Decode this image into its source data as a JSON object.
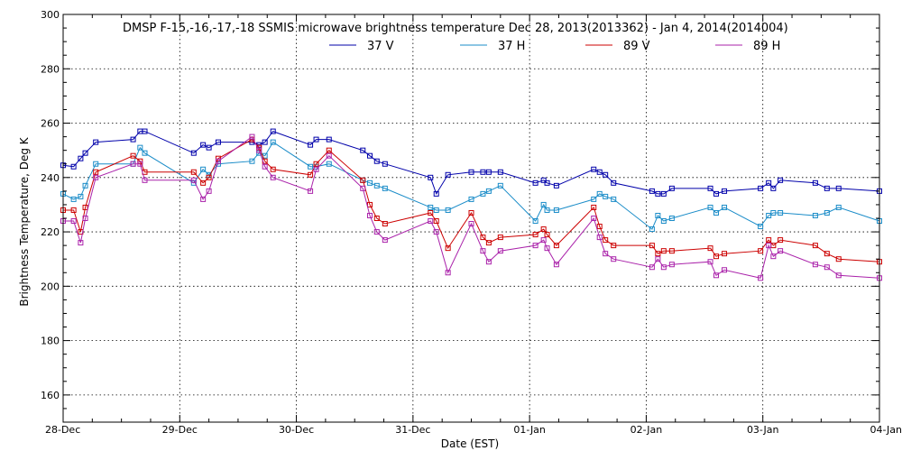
{
  "chart_data": {
    "type": "line",
    "title": "DMSP F-15,-16,-17,-18 SSMIS microwave brightness temperature Dec 28, 2013(2013362) - Jan  4, 2014(2014004)",
    "xlabel": "Date (EST)",
    "ylabel": "Brightness Temperature, Deg K",
    "xlim": [
      0,
      7
    ],
    "ylim": [
      150,
      300
    ],
    "x_ticks": [
      {
        "value": 0,
        "label": "28-Dec"
      },
      {
        "value": 1,
        "label": "29-Dec"
      },
      {
        "value": 2,
        "label": "30-Dec"
      },
      {
        "value": 3,
        "label": "31-Dec"
      },
      {
        "value": 4,
        "label": "01-Jan"
      },
      {
        "value": 5,
        "label": "02-Jan"
      },
      {
        "value": 6,
        "label": "03-Jan"
      },
      {
        "value": 7,
        "label": "04-Jan"
      }
    ],
    "y_ticks": [
      160,
      180,
      200,
      220,
      240,
      260,
      280,
      300
    ],
    "grid": true,
    "legend": "top",
    "series": [
      {
        "name": "37 V",
        "color": "#0000aa",
        "points": [
          [
            0.0,
            244.5
          ],
          [
            0.09,
            244
          ],
          [
            0.15,
            247
          ],
          [
            0.19,
            249
          ],
          [
            0.28,
            253
          ],
          [
            0.6,
            254
          ],
          [
            0.66,
            257
          ],
          [
            0.7,
            257
          ],
          [
            1.12,
            249
          ],
          [
            1.2,
            252
          ],
          [
            1.25,
            251
          ],
          [
            1.33,
            253
          ],
          [
            1.62,
            253
          ],
          [
            1.68,
            252
          ],
          [
            1.73,
            253
          ],
          [
            1.8,
            257
          ],
          [
            2.12,
            252
          ],
          [
            2.17,
            254
          ],
          [
            2.28,
            254
          ],
          [
            2.57,
            250
          ],
          [
            2.63,
            248
          ],
          [
            2.69,
            246
          ],
          [
            2.76,
            245
          ],
          [
            3.15,
            240
          ],
          [
            3.2,
            234
          ],
          [
            3.3,
            241
          ],
          [
            3.5,
            242
          ],
          [
            3.6,
            242
          ],
          [
            3.65,
            242
          ],
          [
            3.75,
            242
          ],
          [
            4.05,
            238
          ],
          [
            4.12,
            239
          ],
          [
            4.15,
            238
          ],
          [
            4.23,
            237
          ],
          [
            4.55,
            243
          ],
          [
            4.6,
            242
          ],
          [
            4.65,
            241
          ],
          [
            4.72,
            238
          ],
          [
            5.05,
            235
          ],
          [
            5.1,
            234
          ],
          [
            5.15,
            234
          ],
          [
            5.22,
            236
          ],
          [
            5.55,
            236
          ],
          [
            5.6,
            234
          ],
          [
            5.67,
            235
          ],
          [
            5.98,
            236
          ],
          [
            6.05,
            238
          ],
          [
            6.09,
            236
          ],
          [
            6.15,
            239
          ],
          [
            6.45,
            238
          ],
          [
            6.55,
            236
          ],
          [
            6.65,
            236
          ],
          [
            7.0,
            235
          ]
        ]
      },
      {
        "name": "37 H",
        "color": "#1a8cc8",
        "points": [
          [
            0.0,
            234
          ],
          [
            0.09,
            232
          ],
          [
            0.15,
            233
          ],
          [
            0.19,
            237
          ],
          [
            0.28,
            245
          ],
          [
            0.6,
            245
          ],
          [
            0.66,
            251
          ],
          [
            0.7,
            249
          ],
          [
            1.12,
            238
          ],
          [
            1.2,
            243
          ],
          [
            1.25,
            241
          ],
          [
            1.33,
            245
          ],
          [
            1.62,
            246
          ],
          [
            1.68,
            249
          ],
          [
            1.73,
            248
          ],
          [
            1.8,
            253
          ],
          [
            2.12,
            244
          ],
          [
            2.17,
            244
          ],
          [
            2.28,
            245
          ],
          [
            2.57,
            239
          ],
          [
            2.63,
            238
          ],
          [
            2.69,
            237
          ],
          [
            2.76,
            236
          ],
          [
            3.15,
            229
          ],
          [
            3.2,
            228
          ],
          [
            3.3,
            228
          ],
          [
            3.5,
            232
          ],
          [
            3.6,
            234
          ],
          [
            3.65,
            235
          ],
          [
            3.75,
            237
          ],
          [
            4.05,
            224
          ],
          [
            4.12,
            230
          ],
          [
            4.15,
            228
          ],
          [
            4.23,
            228
          ],
          [
            4.55,
            232
          ],
          [
            4.6,
            234
          ],
          [
            4.65,
            233
          ],
          [
            4.72,
            232
          ],
          [
            5.05,
            221
          ],
          [
            5.1,
            226
          ],
          [
            5.15,
            224
          ],
          [
            5.22,
            225
          ],
          [
            5.55,
            229
          ],
          [
            5.6,
            227
          ],
          [
            5.67,
            229
          ],
          [
            5.98,
            222
          ],
          [
            6.05,
            226
          ],
          [
            6.09,
            227
          ],
          [
            6.15,
            227
          ],
          [
            6.45,
            226
          ],
          [
            6.55,
            227
          ],
          [
            6.65,
            229
          ],
          [
            7.0,
            224
          ]
        ]
      },
      {
        "name": "89 V",
        "color": "#cc0000",
        "points": [
          [
            0.0,
            228
          ],
          [
            0.09,
            228
          ],
          [
            0.15,
            220
          ],
          [
            0.19,
            229
          ],
          [
            0.28,
            242
          ],
          [
            0.6,
            248
          ],
          [
            0.66,
            246
          ],
          [
            0.7,
            242
          ],
          [
            1.12,
            242
          ],
          [
            1.2,
            238
          ],
          [
            1.25,
            240
          ],
          [
            1.33,
            247
          ],
          [
            1.62,
            254
          ],
          [
            1.68,
            251
          ],
          [
            1.73,
            246
          ],
          [
            1.8,
            243
          ],
          [
            2.12,
            241
          ],
          [
            2.17,
            245
          ],
          [
            2.28,
            250
          ],
          [
            2.57,
            239
          ],
          [
            2.63,
            230
          ],
          [
            2.69,
            225
          ],
          [
            2.76,
            223
          ],
          [
            3.15,
            227
          ],
          [
            3.2,
            224
          ],
          [
            3.3,
            214
          ],
          [
            3.5,
            227
          ],
          [
            3.6,
            218
          ],
          [
            3.65,
            216
          ],
          [
            3.75,
            218
          ],
          [
            4.05,
            219
          ],
          [
            4.12,
            221
          ],
          [
            4.15,
            219
          ],
          [
            4.23,
            215
          ],
          [
            4.55,
            229
          ],
          [
            4.6,
            222
          ],
          [
            4.65,
            217
          ],
          [
            4.72,
            215
          ],
          [
            5.05,
            215
          ],
          [
            5.1,
            212
          ],
          [
            5.15,
            213
          ],
          [
            5.22,
            213
          ],
          [
            5.55,
            214
          ],
          [
            5.6,
            211
          ],
          [
            5.67,
            212
          ],
          [
            5.98,
            213
          ],
          [
            6.05,
            217
          ],
          [
            6.09,
            215
          ],
          [
            6.15,
            217
          ],
          [
            6.45,
            215
          ],
          [
            6.55,
            212
          ],
          [
            6.65,
            210
          ],
          [
            7.0,
            209
          ]
        ]
      },
      {
        "name": "89 H",
        "color": "#aa22aa",
        "points": [
          [
            0.0,
            224
          ],
          [
            0.09,
            224
          ],
          [
            0.15,
            216
          ],
          [
            0.19,
            225
          ],
          [
            0.28,
            240
          ],
          [
            0.6,
            245
          ],
          [
            0.66,
            245
          ],
          [
            0.7,
            239
          ],
          [
            1.12,
            239
          ],
          [
            1.2,
            232
          ],
          [
            1.25,
            235
          ],
          [
            1.33,
            246
          ],
          [
            1.62,
            255
          ],
          [
            1.68,
            250
          ],
          [
            1.73,
            244
          ],
          [
            1.8,
            240
          ],
          [
            2.12,
            235
          ],
          [
            2.17,
            243
          ],
          [
            2.28,
            248
          ],
          [
            2.57,
            236
          ],
          [
            2.63,
            226
          ],
          [
            2.69,
            220
          ],
          [
            2.76,
            217
          ],
          [
            3.15,
            224
          ],
          [
            3.2,
            220
          ],
          [
            3.3,
            205
          ],
          [
            3.5,
            223
          ],
          [
            3.6,
            213
          ],
          [
            3.65,
            209
          ],
          [
            3.75,
            213
          ],
          [
            4.05,
            215
          ],
          [
            4.12,
            217
          ],
          [
            4.15,
            214
          ],
          [
            4.23,
            208
          ],
          [
            4.55,
            225
          ],
          [
            4.6,
            218
          ],
          [
            4.65,
            212
          ],
          [
            4.72,
            210
          ],
          [
            5.05,
            207
          ],
          [
            5.1,
            210
          ],
          [
            5.15,
            207
          ],
          [
            5.22,
            208
          ],
          [
            5.55,
            209
          ],
          [
            5.6,
            204
          ],
          [
            5.67,
            206
          ],
          [
            5.98,
            203
          ],
          [
            6.05,
            215
          ],
          [
            6.09,
            211
          ],
          [
            6.15,
            213
          ],
          [
            6.45,
            208
          ],
          [
            6.55,
            207
          ],
          [
            6.65,
            204
          ],
          [
            7.0,
            203
          ]
        ]
      }
    ]
  }
}
